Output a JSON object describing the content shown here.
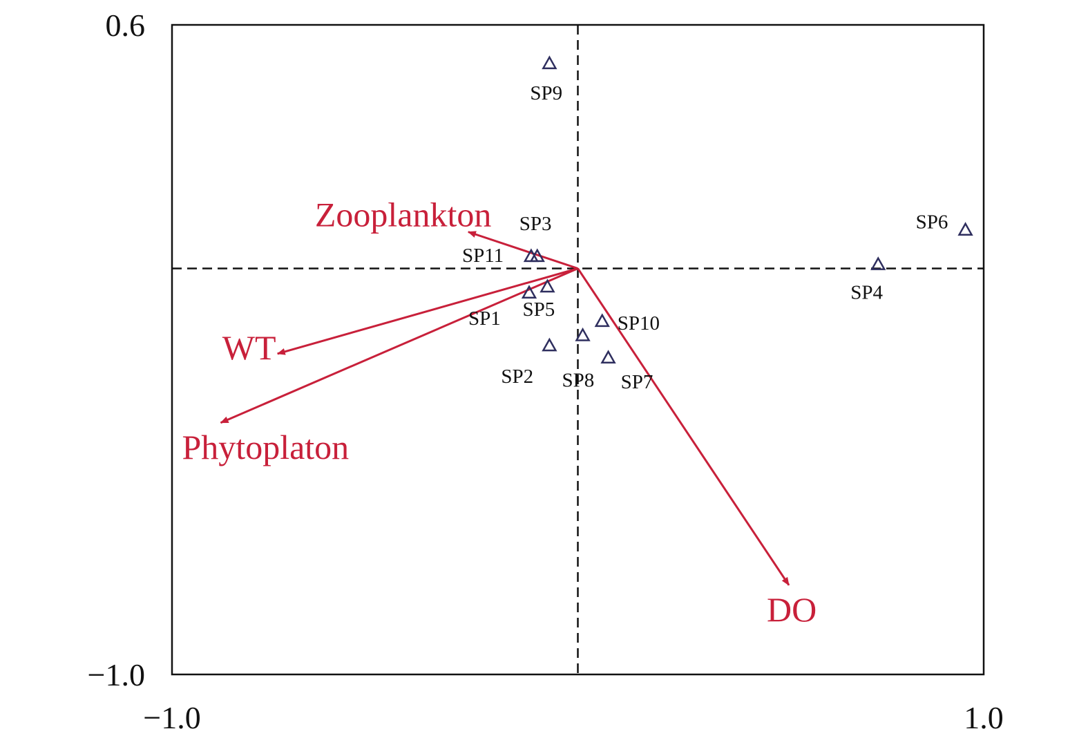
{
  "chart_data": {
    "type": "scatter",
    "title": "",
    "xlabel": "",
    "ylabel": "",
    "xlim": [
      -1.0,
      1.0
    ],
    "ylim": [
      -1.0,
      0.6
    ],
    "x_tick_labels": [
      "−1.0",
      "1.0"
    ],
    "y_tick_labels": [
      "0.6",
      "−1.0"
    ],
    "reference_lines": {
      "x": 0,
      "y": 0,
      "style": "dashed"
    },
    "grid": false,
    "legend": "none",
    "sites": [
      {
        "label": "SP1",
        "x": -0.12,
        "y": -0.06
      },
      {
        "label": "SP2",
        "x": -0.07,
        "y": -0.19
      },
      {
        "label": "SP3",
        "x": -0.1,
        "y": 0.03
      },
      {
        "label": "SP4",
        "x": 0.74,
        "y": 0.01
      },
      {
        "label": "SP5",
        "x": -0.075,
        "y": -0.045
      },
      {
        "label": "SP6",
        "x": 0.955,
        "y": 0.095
      },
      {
        "label": "SP7",
        "x": 0.075,
        "y": -0.22
      },
      {
        "label": "SP8",
        "x": 0.012,
        "y": -0.165
      },
      {
        "label": "SP9",
        "x": -0.07,
        "y": 0.505
      },
      {
        "label": "SP10",
        "x": 0.06,
        "y": -0.13
      },
      {
        "label": "SP11",
        "x": -0.115,
        "y": 0.03
      }
    ],
    "vectors": [
      {
        "label": "Zooplankton",
        "x": -0.27,
        "y": 0.09
      },
      {
        "label": "WT",
        "x": -0.74,
        "y": -0.21
      },
      {
        "label": "Phytoplaton",
        "x": -0.88,
        "y": -0.38
      },
      {
        "label": "DO",
        "x": 0.52,
        "y": -0.78
      }
    ],
    "colors": {
      "site_marker": "#2e2e5e",
      "vector": "#c8203a",
      "axis": "#111111"
    }
  }
}
